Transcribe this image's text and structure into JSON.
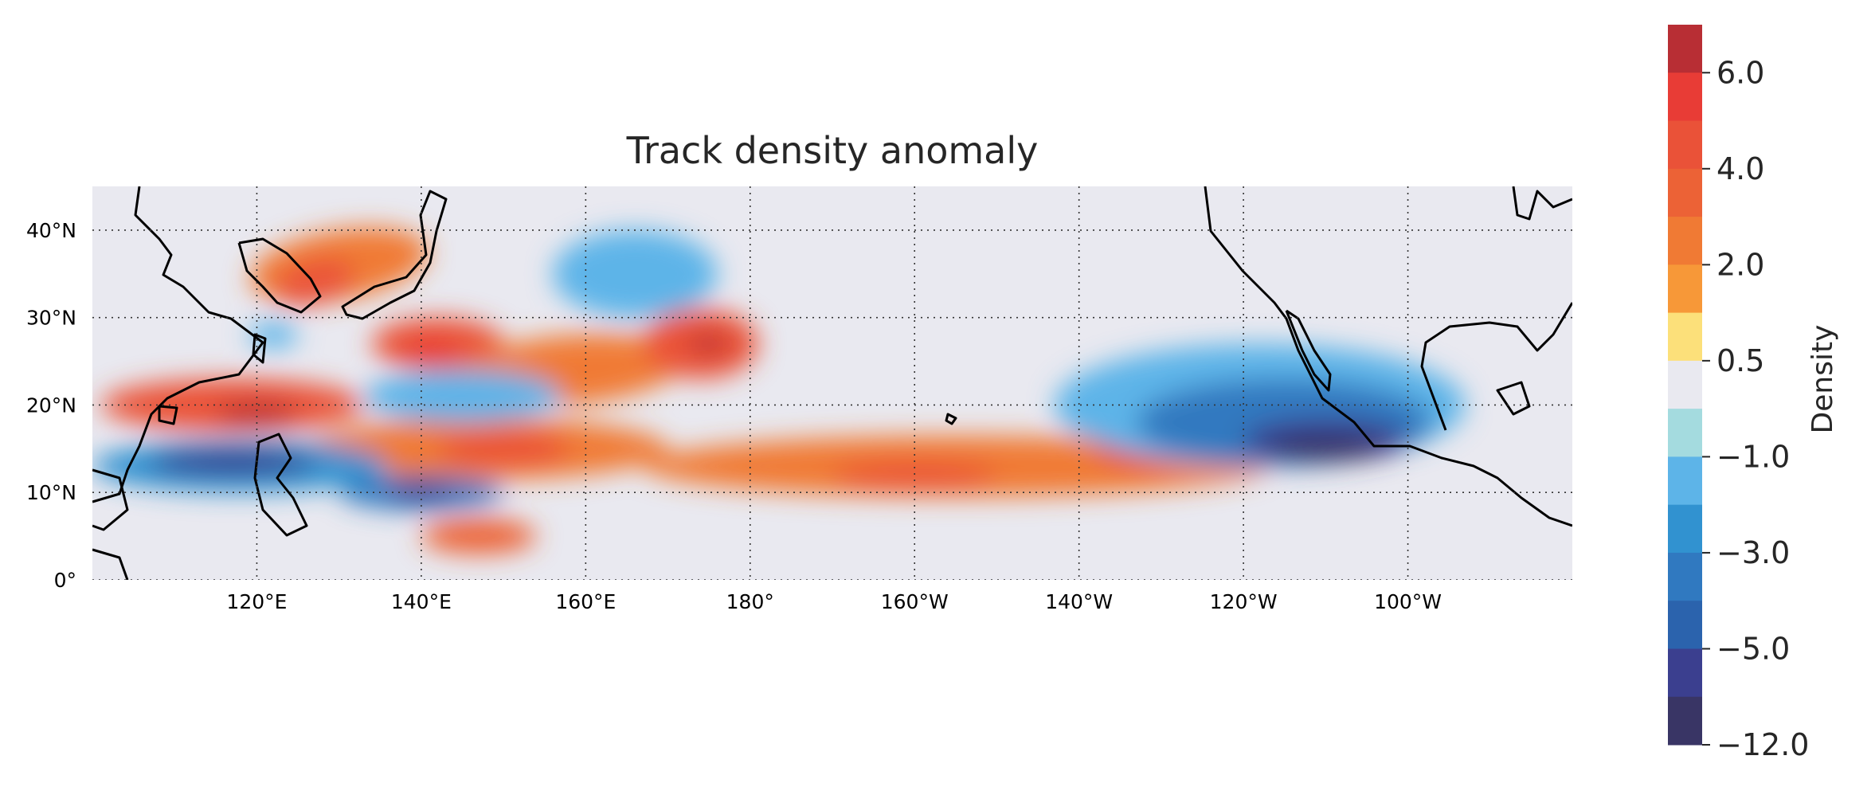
{
  "title": "Track density anomaly",
  "map": {
    "projection": "PlateCarree",
    "extent_lon": [
      100,
      280
    ],
    "extent_lat": [
      0,
      45
    ],
    "background_color": "#e9e9f0",
    "gridlines": "dotted",
    "lon_ticks": [
      {
        "lon": 120,
        "label": "120°E"
      },
      {
        "lon": 140,
        "label": "140°E"
      },
      {
        "lon": 160,
        "label": "160°E"
      },
      {
        "lon": 180,
        "label": "180°"
      },
      {
        "lon": 200,
        "label": "160°W"
      },
      {
        "lon": 220,
        "label": "140°W"
      },
      {
        "lon": 240,
        "label": "120°W"
      },
      {
        "lon": 260,
        "label": "100°W"
      }
    ],
    "lat_ticks": [
      {
        "lat": 0,
        "label": "0°"
      },
      {
        "lat": 10,
        "label": "10°N"
      },
      {
        "lat": 20,
        "label": "20°N"
      },
      {
        "lat": 30,
        "label": "30°N"
      },
      {
        "lat": 40,
        "label": "40°N"
      }
    ]
  },
  "colorbar": {
    "label": "Density",
    "tick_labels": [
      "6.0",
      "4.0",
      "2.0",
      "0.5",
      "−1.0",
      "−3.0",
      "−5.0",
      "−12.0"
    ],
    "colors_top_to_bottom": [
      "#b82e34",
      "#e83c36",
      "#ea5238",
      "#ec6236",
      "#f07a34",
      "#f79838",
      "#fce07a",
      "#e9e9f0",
      "#a4dbdf",
      "#5db4e8",
      "#3192d0",
      "#3079c0",
      "#2b63ad",
      "#3b3f8f",
      "#393565"
    ]
  },
  "anomaly_features": [
    {
      "sign": "positive",
      "level": 3,
      "lon": 130,
      "lat": 36,
      "rx": 11,
      "ry": 4,
      "rot": 10
    },
    {
      "sign": "positive",
      "level": 5,
      "lon": 127,
      "lat": 34,
      "rx": 5,
      "ry": 2.5,
      "rot": 15
    },
    {
      "sign": "positive",
      "level": 5,
      "lon": 142,
      "lat": 27,
      "rx": 8,
      "ry": 3,
      "rot": 0
    },
    {
      "sign": "positive",
      "level": 6,
      "lon": 141,
      "lat": 26,
      "rx": 3,
      "ry": 1.5,
      "rot": 0
    },
    {
      "sign": "positive",
      "level": 3,
      "lon": 158,
      "lat": 24,
      "rx": 14,
      "ry": 4,
      "rot": 5
    },
    {
      "sign": "positive",
      "level": 5,
      "lon": 174,
      "lat": 27,
      "rx": 7,
      "ry": 4,
      "rot": 0
    },
    {
      "sign": "positive",
      "level": 7,
      "lon": 175,
      "lat": 27,
      "rx": 2.5,
      "ry": 1,
      "rot": 0
    },
    {
      "sign": "positive",
      "level": 5,
      "lon": 117,
      "lat": 20,
      "rx": 16,
      "ry": 3,
      "rot": 0
    },
    {
      "sign": "positive",
      "level": 7,
      "lon": 120,
      "lat": 19,
      "rx": 5,
      "ry": 1.2,
      "rot": 0
    },
    {
      "sign": "positive",
      "level": 3,
      "lon": 148,
      "lat": 15,
      "rx": 22,
      "ry": 3.5,
      "rot": 0
    },
    {
      "sign": "positive",
      "level": 5,
      "lon": 150,
      "lat": 15,
      "rx": 8,
      "ry": 2,
      "rot": 0
    },
    {
      "sign": "positive",
      "level": 3,
      "lon": 205,
      "lat": 13,
      "rx": 38,
      "ry": 3.5,
      "rot": 0
    },
    {
      "sign": "positive",
      "level": 5,
      "lon": 200,
      "lat": 12,
      "rx": 10,
      "ry": 1.5,
      "rot": 0
    },
    {
      "sign": "positive",
      "level": 6,
      "lon": 229,
      "lat": 15,
      "rx": 7,
      "ry": 2,
      "rot": 0
    },
    {
      "sign": "positive",
      "level": 4,
      "lon": 147,
      "lat": 5,
      "rx": 7,
      "ry": 2,
      "rot": 0
    },
    {
      "sign": "negative",
      "level": 3,
      "lon": 118,
      "lat": 13,
      "rx": 18,
      "ry": 3,
      "rot": 0
    },
    {
      "sign": "negative",
      "level": 6,
      "lon": 117,
      "lat": 13.5,
      "rx": 10,
      "ry": 1.5,
      "rot": 0
    },
    {
      "sign": "negative",
      "level": 4,
      "lon": 140,
      "lat": 10,
      "rx": 10,
      "ry": 2,
      "rot": 0
    },
    {
      "sign": "negative",
      "level": 6,
      "lon": 140,
      "lat": 10,
      "rx": 4,
      "ry": 1,
      "rot": 0
    },
    {
      "sign": "negative",
      "level": 2,
      "lon": 145,
      "lat": 21,
      "rx": 12,
      "ry": 3,
      "rot": 0
    },
    {
      "sign": "negative",
      "level": 2,
      "lon": 166,
      "lat": 35,
      "rx": 10,
      "ry": 5,
      "rot": 0
    },
    {
      "sign": "negative",
      "level": 2,
      "lon": 122,
      "lat": 28,
      "rx": 3,
      "ry": 1.5,
      "rot": 0
    },
    {
      "sign": "negative",
      "level": 2,
      "lon": 242,
      "lat": 20,
      "rx": 25,
      "ry": 7,
      "rot": 0
    },
    {
      "sign": "negative",
      "level": 4,
      "lon": 245,
      "lat": 18,
      "rx": 18,
      "ry": 5,
      "rot": 0
    },
    {
      "sign": "negative",
      "level": 6,
      "lon": 250,
      "lat": 16,
      "rx": 10,
      "ry": 2.5,
      "rot": 0
    },
    {
      "sign": "negative",
      "level": 7,
      "lon": 250,
      "lat": 15,
      "rx": 7,
      "ry": 1.5,
      "rot": 0
    }
  ]
}
